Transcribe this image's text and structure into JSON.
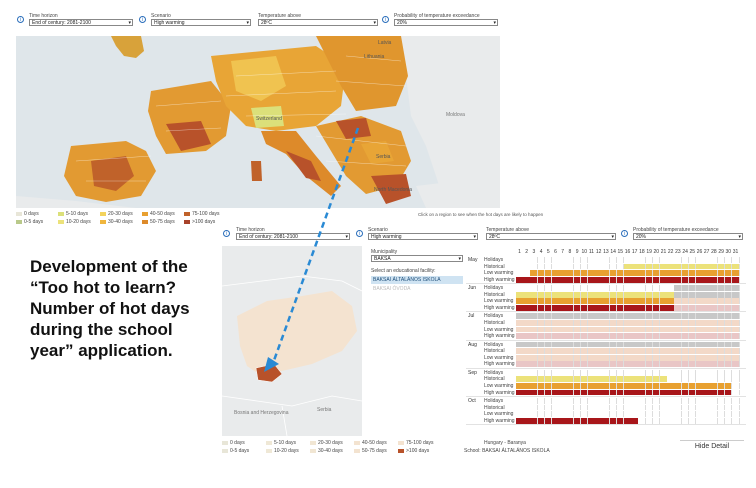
{
  "top_controls": {
    "time_horizon": {
      "label": "Time horizon",
      "value": "End of century: 2081-2100"
    },
    "scenario": {
      "label": "Scenario",
      "value": "High warming"
    },
    "temperature": {
      "label": "Temperature above",
      "value": "28ºC"
    },
    "probability": {
      "label": "Probability of temperature exceedance",
      "value": "20%"
    }
  },
  "europe_map": {
    "labels": [
      "Latvia",
      "Lithuania",
      "Moldova",
      "Serbia",
      "North Macedonia",
      "Switzerland"
    ],
    "click_hint": "Click on a region to see when the hot days are likely to happen"
  },
  "legend": {
    "items": [
      {
        "label": "0 days",
        "color": "#e8e6d8"
      },
      {
        "label": "0-5 days",
        "color": "#b9c98a"
      },
      {
        "label": "5-10 days",
        "color": "#dbe07a"
      },
      {
        "label": "10-20 days",
        "color": "#ece27a"
      },
      {
        "label": "20-30 days",
        "color": "#f3d35c"
      },
      {
        "label": "30-40 days",
        "color": "#f0b63d"
      },
      {
        "label": "40-50 days",
        "color": "#e8a030"
      },
      {
        "label": "50-75 days",
        "color": "#dd8a2a"
      },
      {
        "label": "75-100 days",
        "color": "#c0622a"
      },
      {
        "label": ">100 days",
        "color": "#a8422a"
      }
    ]
  },
  "bottom_controls": {
    "time_horizon": {
      "label": "Time horizon",
      "value": "End of century: 2081-2100"
    },
    "scenario": {
      "label": "Scenario",
      "value": "High warming"
    },
    "temperature": {
      "label": "Temperature above",
      "value": "28ºC"
    },
    "probability": {
      "label": "Probability of temperature exceedance",
      "value": "20%"
    }
  },
  "main_title": "Development of the “Too hot to learn? Number of hot days during the school year” application.",
  "sidebar": {
    "municipality_label": "Municipality",
    "municipality_value": "BAKSA",
    "facility_label": "Select an educational facility:",
    "facilities": [
      "BAKSAI ÁLTALÁNOS ISKOLA",
      "BAKSAI ÓVODA"
    ]
  },
  "calendar": {
    "days": [
      "1",
      "2",
      "3",
      "4",
      "5",
      "6",
      "7",
      "8",
      "9",
      "10",
      "11",
      "12",
      "13",
      "14",
      "15",
      "16",
      "17",
      "18",
      "19",
      "20",
      "21",
      "22",
      "23",
      "24",
      "25",
      "26",
      "27",
      "28",
      "29",
      "30",
      "31"
    ],
    "months": [
      "May",
      "Jun",
      "Jul",
      "Aug",
      "Sep",
      "Oct"
    ],
    "row_labels": [
      "Holidays",
      "Historical",
      "Low warming",
      "High warming"
    ],
    "colors": {
      "holiday": "#c8c8c8",
      "hist": "#ece27a",
      "low": "#e8a030",
      "high": "#a8161a",
      "empty": "#ffffff",
      "pale": "#f3d9c8",
      "pale2": "#e9c6c6"
    }
  },
  "footer": {
    "region": "Hungary - Baranya",
    "school": "School: BAKSAI ÁLTALÁNOS ISKOLA",
    "hide_detail": "Hide Detail"
  },
  "hungary_map": {
    "labels": [
      "Bosnia and Herzegovina",
      "Serbia"
    ]
  }
}
